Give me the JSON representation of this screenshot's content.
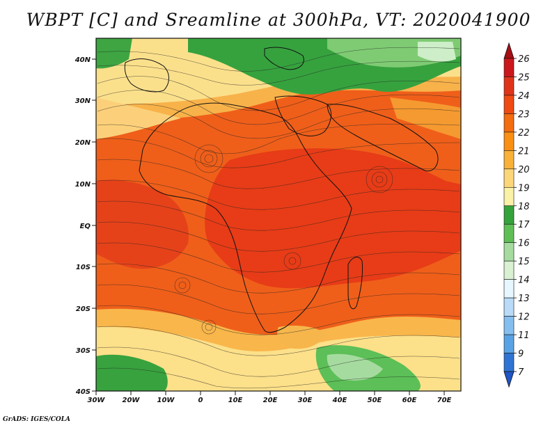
{
  "title": "WBPT [C] and Sreamline at 300hPa, VT: 2020041900",
  "credit": "GrADS: IGES/COLA",
  "map": {
    "lat_labels": [
      "40N",
      "30N",
      "20N",
      "10N",
      "EQ",
      "10S",
      "20S",
      "30S",
      "40S"
    ],
    "lon_labels": [
      "30W",
      "20W",
      "10W",
      "0",
      "10E",
      "20E",
      "30E",
      "40E",
      "50E",
      "60E",
      "70E"
    ],
    "colorbar": {
      "levels": [
        "26",
        "25",
        "24",
        "23",
        "22",
        "21",
        "20",
        "19",
        "18",
        "17",
        "16",
        "15",
        "14",
        "13",
        "12",
        "11",
        "9",
        "7"
      ],
      "colors": [
        "#a50f15",
        "#cb181d",
        "#e0341a",
        "#ef4a13",
        "#f46d10",
        "#f99014",
        "#f9b13a",
        "#fcd77a",
        "#fbf1a7",
        "#35a33c",
        "#5fbf57",
        "#a6dba0",
        "#d9f0d3",
        "#e6f7ff",
        "#b9dbf7",
        "#85bff0",
        "#5aa2e6",
        "#2f74d2",
        "#1f55c4"
      ]
    }
  }
}
